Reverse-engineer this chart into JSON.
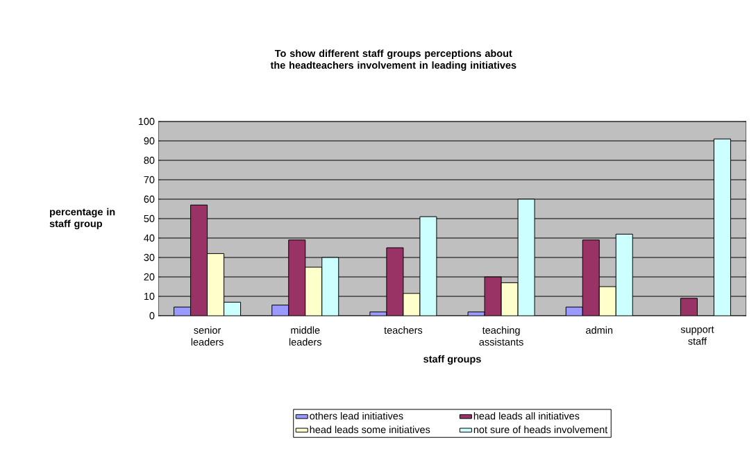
{
  "chart_data": {
    "type": "bar",
    "title": "To show different staff groups perceptions about the headteachers involvement in leading initiatives",
    "xlabel": "staff groups",
    "ylabel": "percentage in staff group",
    "categories": [
      "senior leaders",
      "middle leaders",
      "teachers",
      "teaching assistants",
      "admin",
      "support staff"
    ],
    "series": [
      {
        "name": "others lead initiatives",
        "color": "#9999ff",
        "values": [
          4.5,
          5.5,
          2,
          2,
          4.5,
          null
        ]
      },
      {
        "name": "head leads all initiatives",
        "color": "#993366",
        "values": [
          57,
          39,
          35,
          20,
          39,
          9
        ]
      },
      {
        "name": "head leads some initiatives",
        "color": "#ffffcc",
        "values": [
          32,
          25,
          11.5,
          17,
          15,
          null
        ]
      },
      {
        "name": "not sure of heads involvement",
        "color": "#ccffff",
        "values": [
          7,
          30,
          51,
          60,
          42,
          91
        ]
      }
    ],
    "ylim": [
      0,
      100
    ],
    "yticks": [
      0,
      10,
      20,
      30,
      40,
      50,
      60,
      70,
      80,
      90,
      100
    ],
    "grid": "y",
    "legend": "bottom"
  }
}
